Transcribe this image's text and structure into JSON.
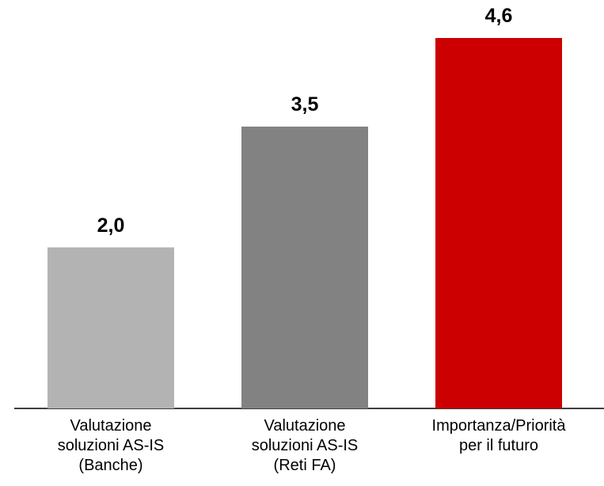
{
  "chart_data": {
    "type": "bar",
    "categories": [
      "Valutazione\nsoluzioni AS-IS\n(Banche)",
      "Valutazione\nsoluzioni AS-IS\n(Reti FA)",
      "Importanza/Priorità\nper il futuro"
    ],
    "values": [
      2.0,
      3.5,
      4.6
    ],
    "value_labels": [
      "2,0",
      "3,5",
      "4,6"
    ],
    "colors": [
      "#b3b3b3",
      "#828282",
      "#cc0000"
    ]
  }
}
